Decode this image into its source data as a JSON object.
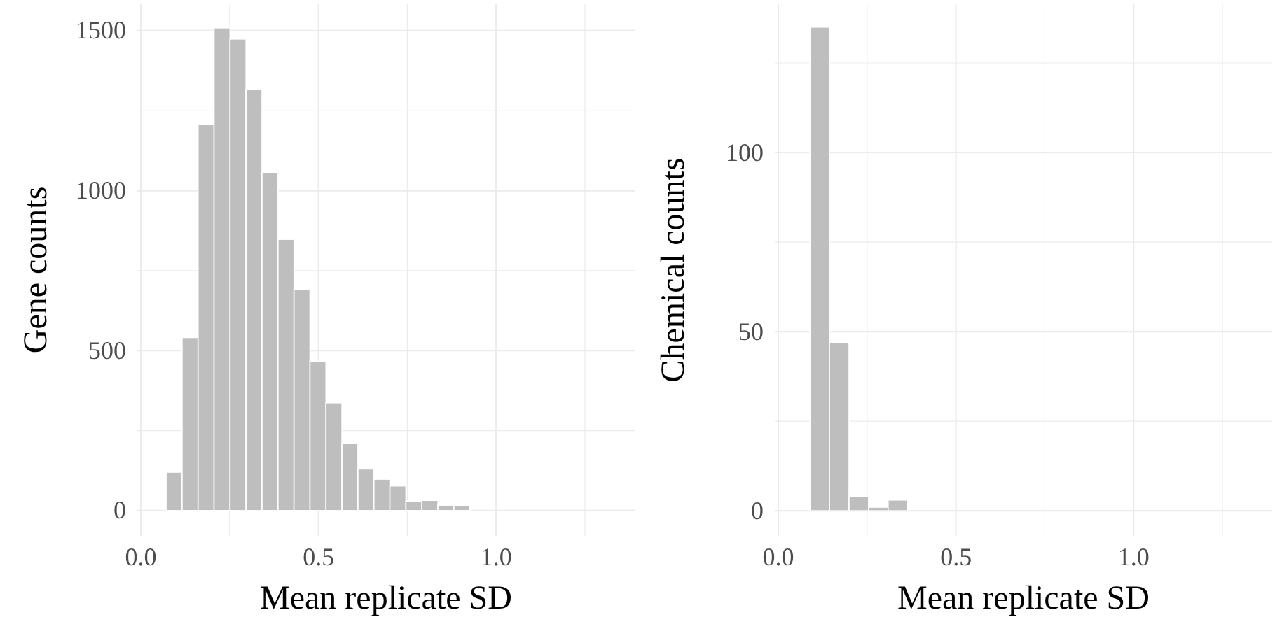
{
  "chart_data": [
    {
      "type": "histogram",
      "xlabel": "Mean replicate SD",
      "ylabel": "Gene counts",
      "color": "#bebebe",
      "grid": true,
      "bins": [
        0.071,
        0.116,
        0.161,
        0.206,
        0.251,
        0.296,
        0.341,
        0.386,
        0.431,
        0.476,
        0.521,
        0.566,
        0.611,
        0.656,
        0.701,
        0.746,
        0.791,
        0.836,
        0.881,
        0.926,
        0.971,
        1.016,
        1.061,
        1.106,
        1.151,
        1.196,
        1.241,
        1.286,
        1.331
      ],
      "values": [
        120,
        541,
        1207,
        1509,
        1474,
        1318,
        1057,
        848,
        692,
        466,
        337,
        210,
        130,
        98,
        77,
        29,
        32,
        17,
        15,
        0,
        0,
        0,
        0,
        0,
        0,
        0,
        0,
        0
      ],
      "xlim": [
        -0.01,
        1.39
      ],
      "xticks": [
        {
          "value": 0,
          "label": "0.0"
        },
        {
          "value": 0.25,
          "label": null
        },
        {
          "value": 0.5,
          "label": "0.5"
        },
        {
          "value": 0.75,
          "label": null
        },
        {
          "value": 1,
          "label": "1.0"
        },
        {
          "value": 1.25,
          "label": null
        }
      ],
      "ylim": [
        -79,
        1583
      ],
      "yticks": [
        0,
        {
          "value": 250,
          "label": null
        },
        500,
        {
          "value": 750,
          "label": null
        },
        1000,
        {
          "value": 1250,
          "label": null
        },
        1500
      ]
    },
    {
      "type": "histogram",
      "xlabel": "Mean replicate SD",
      "ylabel": "Chemical counts",
      "color": "#bebebe",
      "grid": true,
      "bins": [
        0.089,
        0.144,
        0.199,
        0.254,
        0.309,
        0.364
      ],
      "values": [
        135,
        47,
        4,
        1,
        3
      ],
      "xlim": [
        -0.01,
        1.39
      ],
      "xticks": [
        {
          "value": 0,
          "label": "0.0"
        },
        {
          "value": 0.25,
          "label": null
        },
        {
          "value": 0.5,
          "label": "0.5"
        },
        {
          "value": 0.75,
          "label": null
        },
        {
          "value": 1,
          "label": "1.0"
        },
        {
          "value": 1.25,
          "label": null
        }
      ],
      "ylim": [
        -7,
        141.4
      ],
      "yticks": [
        0,
        {
          "value": 25,
          "label": null
        },
        50,
        {
          "value": 75,
          "label": null
        },
        100,
        {
          "value": 125,
          "label": null
        }
      ]
    }
  ]
}
